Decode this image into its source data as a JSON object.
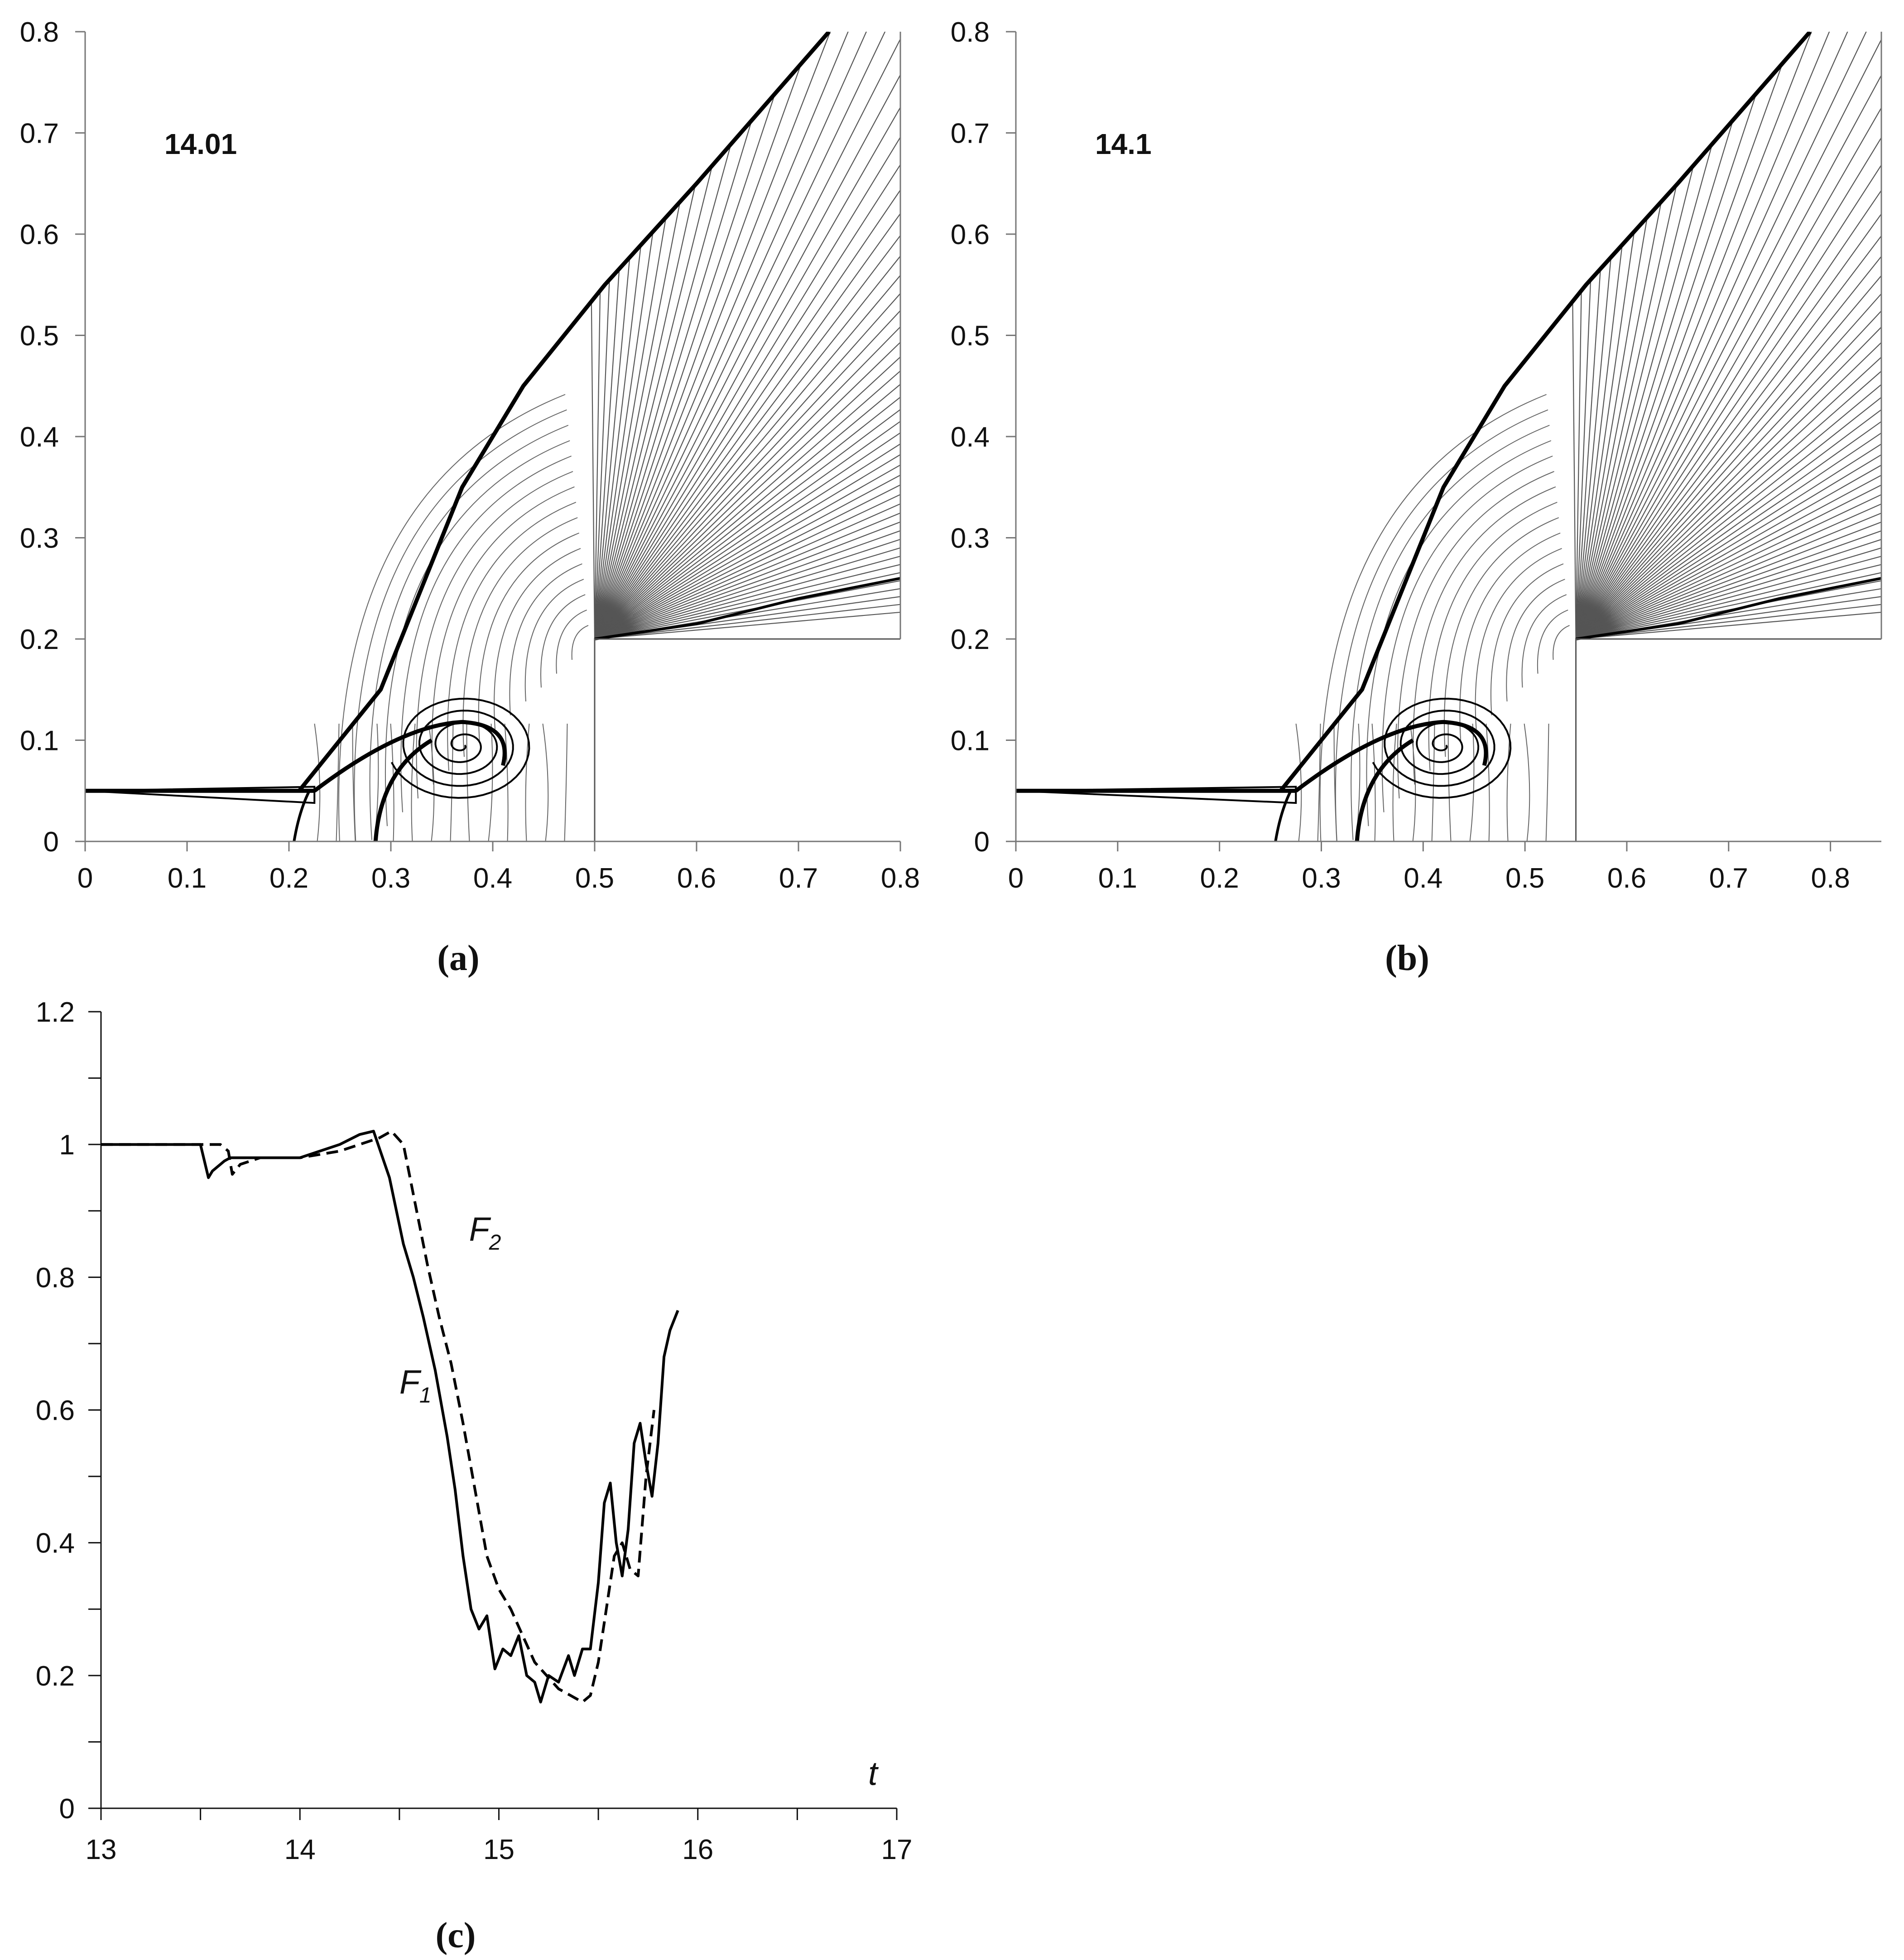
{
  "chart_data": [
    {
      "type": "contour",
      "panel": "(a)",
      "annotation": "14.01",
      "xlim": [
        0,
        0.8
      ],
      "ylim": [
        0,
        0.8
      ],
      "x_ticks": [
        "0",
        "0.1",
        "0.2",
        "0.3",
        "0.4",
        "0.5",
        "0.6",
        "0.7",
        "0.8"
      ],
      "y_ticks": [
        "0",
        "0.1",
        "0.2",
        "0.3",
        "0.4",
        "0.5",
        "0.6",
        "0.7",
        "0.8"
      ],
      "step_corner": [
        0.5,
        0.2
      ],
      "jet_height": 0.05,
      "jet_end_x": 0.21,
      "vortex_center": [
        0.37,
        0.095
      ],
      "shock_front": [
        [
          0.21,
          0.05
        ],
        [
          0.29,
          0.15
        ],
        [
          0.33,
          0.25
        ],
        [
          0.37,
          0.35
        ],
        [
          0.43,
          0.45
        ],
        [
          0.51,
          0.55
        ],
        [
          0.6,
          0.65
        ],
        [
          0.73,
          0.8
        ]
      ],
      "upper_shock_right": [
        [
          0.5,
          0.2
        ],
        [
          0.6,
          0.215
        ],
        [
          0.7,
          0.24
        ],
        [
          0.8,
          0.26
        ]
      ]
    },
    {
      "type": "contour",
      "panel": "(b)",
      "annotation": "14.1",
      "xlim": [
        0,
        0.85
      ],
      "ylim": [
        0,
        0.8
      ],
      "x_ticks": [
        "0",
        "0.1",
        "0.2",
        "0.3",
        "0.4",
        "0.5",
        "0.6",
        "0.7",
        "0.8"
      ],
      "y_ticks": [
        "0",
        "0.1",
        "0.2",
        "0.3",
        "0.4",
        "0.5",
        "0.6",
        "0.7",
        "0.8"
      ],
      "step_corner": [
        0.55,
        0.2
      ],
      "jet_height": 0.05,
      "jet_end_x": 0.26,
      "vortex_center": [
        0.42,
        0.095
      ],
      "shock_front": [
        [
          0.26,
          0.05
        ],
        [
          0.34,
          0.15
        ],
        [
          0.38,
          0.25
        ],
        [
          0.42,
          0.35
        ],
        [
          0.48,
          0.45
        ],
        [
          0.56,
          0.55
        ],
        [
          0.65,
          0.65
        ],
        [
          0.78,
          0.8
        ]
      ],
      "upper_shock_right": [
        [
          0.55,
          0.2
        ],
        [
          0.65,
          0.215
        ],
        [
          0.75,
          0.24
        ],
        [
          0.85,
          0.26
        ]
      ]
    },
    {
      "type": "line",
      "panel": "(c)",
      "xlabel": "t",
      "xlim": [
        13,
        17
      ],
      "ylim": [
        0,
        1.2
      ],
      "x_ticks": [
        "13",
        "14",
        "15",
        "16",
        "17"
      ],
      "y_ticks": [
        "0",
        "0.2",
        "0.4",
        "0.6",
        "0.8",
        "1",
        "1.2"
      ],
      "series": [
        {
          "name": "F1",
          "style": "solid",
          "x": [
            13,
            13.5,
            13.54,
            13.56,
            13.62,
            13.65,
            13.7,
            13.8,
            13.9,
            14.0,
            14.1,
            14.2,
            14.3,
            14.37,
            14.45,
            14.52,
            14.57,
            14.62,
            14.68,
            14.74,
            14.78,
            14.82,
            14.86,
            14.9,
            14.94,
            14.98,
            15.02,
            15.06,
            15.1,
            15.14,
            15.18,
            15.21,
            15.25,
            15.3,
            15.35,
            15.38,
            15.42,
            15.46,
            15.5,
            15.53,
            15.56,
            15.59,
            15.62,
            15.65,
            15.68,
            15.71,
            15.74,
            15.77,
            15.8,
            15.83,
            15.86,
            15.9
          ],
          "y": [
            1.0,
            1.0,
            0.95,
            0.96,
            0.975,
            0.98,
            0.98,
            0.98,
            0.98,
            0.98,
            0.99,
            1.0,
            1.015,
            1.02,
            0.95,
            0.85,
            0.8,
            0.74,
            0.66,
            0.56,
            0.48,
            0.38,
            0.3,
            0.27,
            0.29,
            0.21,
            0.24,
            0.23,
            0.26,
            0.2,
            0.19,
            0.16,
            0.2,
            0.19,
            0.23,
            0.2,
            0.24,
            0.24,
            0.34,
            0.46,
            0.49,
            0.4,
            0.35,
            0.42,
            0.55,
            0.58,
            0.52,
            0.47,
            0.55,
            0.68,
            0.72,
            0.75
          ]
        },
        {
          "name": "F2",
          "style": "dashed",
          "x": [
            13,
            13.6,
            13.64,
            13.66,
            13.7,
            13.8,
            13.9,
            14.0,
            14.1,
            14.2,
            14.3,
            14.4,
            14.46,
            14.52,
            14.58,
            14.64,
            14.7,
            14.76,
            14.82,
            14.88,
            14.94,
            15.0,
            15.06,
            15.12,
            15.18,
            15.24,
            15.3,
            15.36,
            15.42,
            15.46,
            15.5,
            15.54,
            15.58,
            15.62,
            15.66,
            15.7,
            15.74,
            15.78
          ],
          "y": [
            1.0,
            1.0,
            0.99,
            0.955,
            0.97,
            0.98,
            0.98,
            0.98,
            0.985,
            0.99,
            1.0,
            1.01,
            1.02,
            1.0,
            0.91,
            0.82,
            0.74,
            0.67,
            0.58,
            0.48,
            0.38,
            0.33,
            0.3,
            0.26,
            0.22,
            0.2,
            0.18,
            0.17,
            0.16,
            0.17,
            0.22,
            0.3,
            0.38,
            0.4,
            0.36,
            0.35,
            0.5,
            0.6
          ]
        }
      ],
      "curve_labels": [
        {
          "text": "F",
          "sub": "2",
          "x": 14.85,
          "y": 0.855
        },
        {
          "text": "F",
          "sub": "1",
          "x": 14.5,
          "y": 0.625
        }
      ]
    }
  ]
}
